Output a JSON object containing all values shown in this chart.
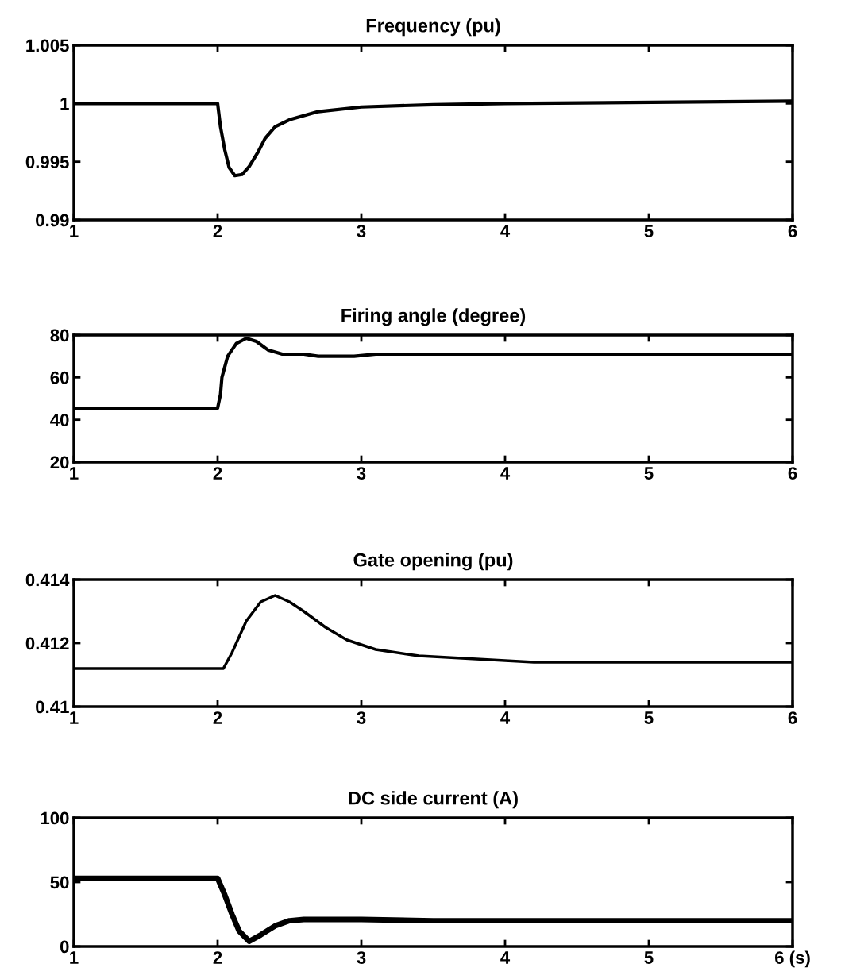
{
  "chart_data": [
    {
      "type": "line",
      "title": "Frequency (pu)",
      "xlim": [
        1,
        6
      ],
      "xticks": [
        1,
        2,
        3,
        4,
        5,
        6
      ],
      "ylim": [
        0.99,
        1.005
      ],
      "yticks": [
        0.99,
        0.995,
        1,
        1.005
      ],
      "grid": false,
      "legend": false,
      "series": [
        {
          "color": "#000000",
          "x": [
            1,
            2.0,
            2.02,
            2.05,
            2.08,
            2.12,
            2.17,
            2.22,
            2.28,
            2.33,
            2.4,
            2.5,
            2.7,
            3.0,
            3.5,
            4,
            6
          ],
          "values": [
            1.0,
            1.0,
            0.998,
            0.996,
            0.9945,
            0.9938,
            0.9939,
            0.9946,
            0.9958,
            0.997,
            0.998,
            0.9986,
            0.9993,
            0.9997,
            0.9999,
            1.0,
            1.0002
          ]
        }
      ]
    },
    {
      "type": "line",
      "title": "Firing angle (degree)",
      "xlim": [
        1,
        6
      ],
      "xticks": [
        1,
        2,
        3,
        4,
        5,
        6
      ],
      "ylim": [
        20,
        80
      ],
      "yticks": [
        20,
        40,
        60,
        80
      ],
      "grid": false,
      "legend": false,
      "series": [
        {
          "color": "#000000",
          "x": [
            1,
            2.0,
            2.02,
            2.03,
            2.07,
            2.13,
            2.2,
            2.27,
            2.35,
            2.45,
            2.6,
            2.7,
            2.95,
            3.1,
            6
          ],
          "values": [
            45.5,
            45.5,
            52,
            60,
            70,
            76,
            78.5,
            77,
            73,
            71,
            71,
            70,
            70,
            71,
            71
          ]
        }
      ]
    },
    {
      "type": "line",
      "title": "Gate opening (pu)",
      "xlim": [
        1,
        6
      ],
      "xticks": [
        1,
        2,
        3,
        4,
        5,
        6
      ],
      "ylim": [
        0.41,
        0.414
      ],
      "yticks": [
        0.41,
        0.412,
        0.414
      ],
      "grid": false,
      "legend": false,
      "series": [
        {
          "color": "#000000",
          "x": [
            1,
            2.04,
            2.1,
            2.2,
            2.3,
            2.4,
            2.5,
            2.6,
            2.75,
            2.9,
            3.1,
            3.4,
            3.8,
            4.2,
            6
          ],
          "values": [
            0.4112,
            0.4112,
            0.4117,
            0.4127,
            0.4133,
            0.4135,
            0.4133,
            0.413,
            0.4125,
            0.4121,
            0.4118,
            0.4116,
            0.4115,
            0.4114,
            0.4114
          ]
        }
      ]
    },
    {
      "type": "line",
      "title": "DC side current (A)",
      "xlim": [
        1,
        6
      ],
      "xticks": [
        1,
        2,
        3,
        4,
        5,
        {
          "value": 6,
          "label": "6 (s)"
        }
      ],
      "ylim": [
        0,
        100
      ],
      "yticks": [
        0,
        50,
        100
      ],
      "grid": false,
      "legend": false,
      "series": [
        {
          "color": "#000000",
          "x": [
            1,
            2.0,
            2.05,
            2.1,
            2.15,
            2.22,
            2.3,
            2.4,
            2.5,
            2.6,
            3,
            3.5,
            6
          ],
          "values": [
            53,
            53,
            40,
            25,
            12,
            4,
            9,
            16,
            20,
            21,
            21,
            20,
            20
          ]
        }
      ]
    }
  ]
}
